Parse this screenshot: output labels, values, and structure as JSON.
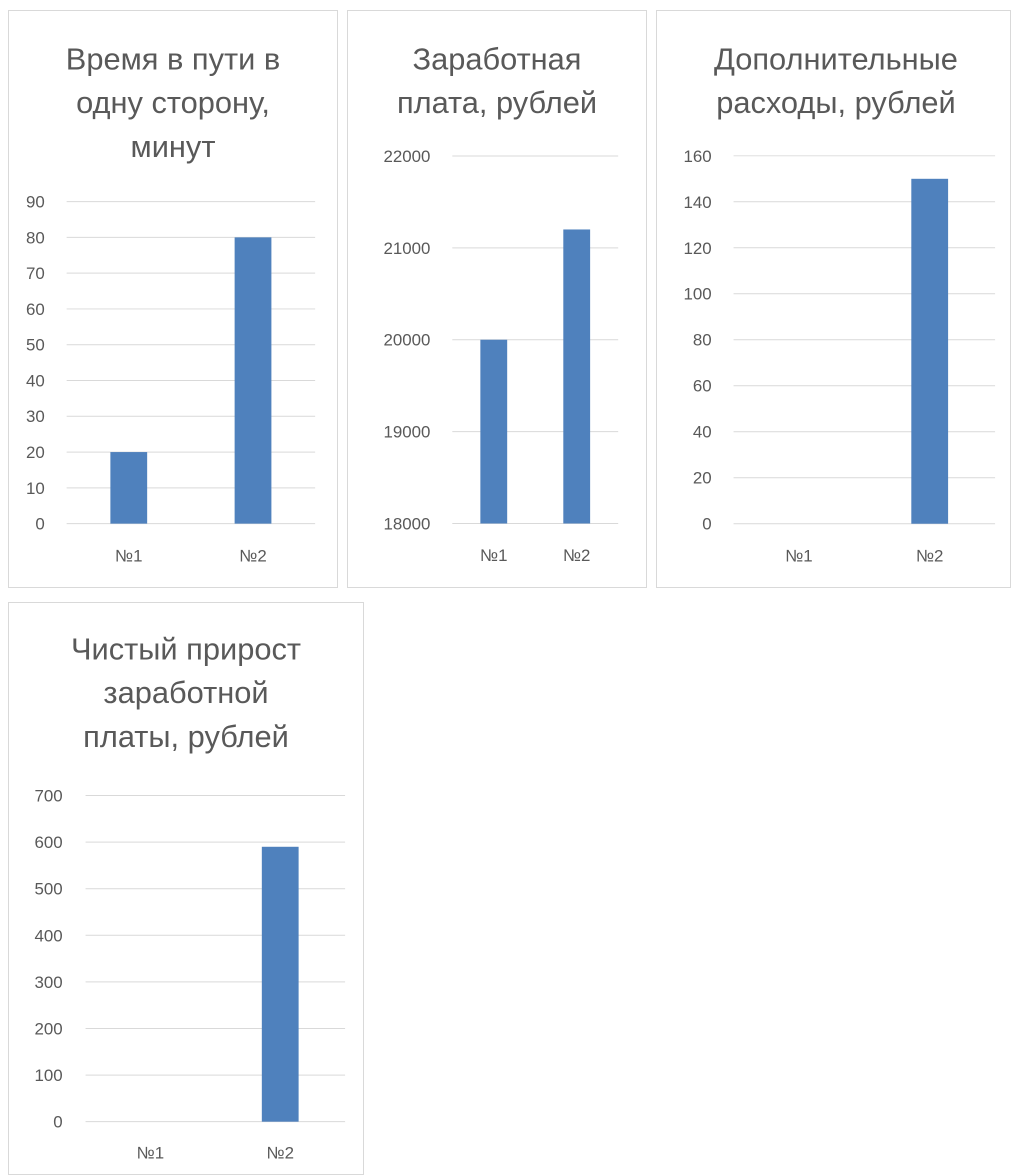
{
  "chart_data": [
    {
      "type": "bar",
      "title": [
        "Время в пути в",
        "одну сторону,",
        "минут"
      ],
      "categories": [
        "№1",
        "№2"
      ],
      "values": [
        20,
        80
      ],
      "ylim": [
        0,
        90
      ],
      "yticks": [
        0,
        10,
        20,
        30,
        40,
        50,
        60,
        70,
        80,
        90
      ],
      "grid": true,
      "legend": "none",
      "bar_color": "#4f81bd"
    },
    {
      "type": "bar",
      "title": [
        "Заработная",
        "плата, рублей"
      ],
      "categories": [
        "№1",
        "№2"
      ],
      "values": [
        20000,
        21200
      ],
      "ylim": [
        18000,
        22000
      ],
      "yticks": [
        18000,
        19000,
        20000,
        21000,
        22000
      ],
      "grid": true,
      "legend": "none",
      "bar_color": "#4f81bd"
    },
    {
      "type": "bar",
      "title": [
        "Дополнительные",
        "расходы, рублей"
      ],
      "categories": [
        "№1",
        "№2"
      ],
      "values": [
        0,
        150
      ],
      "ylim": [
        0,
        160
      ],
      "yticks": [
        0,
        20,
        40,
        60,
        80,
        100,
        120,
        140,
        160
      ],
      "grid": true,
      "legend": "none",
      "bar_color": "#4f81bd"
    },
    {
      "type": "bar",
      "title": [
        "Чистый прирост",
        "заработной",
        "платы, рублей"
      ],
      "categories": [
        "№1",
        "№2"
      ],
      "values": [
        0,
        590
      ],
      "ylim": [
        0,
        700
      ],
      "yticks": [
        0,
        100,
        200,
        300,
        400,
        500,
        600,
        700
      ],
      "grid": true,
      "legend": "none",
      "bar_color": "#4f81bd"
    }
  ]
}
